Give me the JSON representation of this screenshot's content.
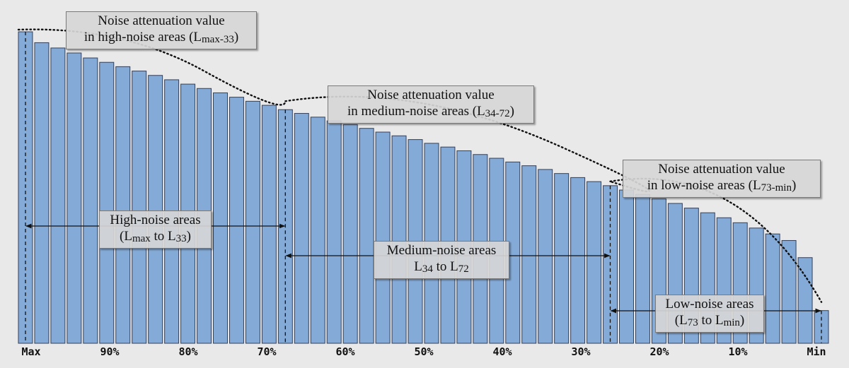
{
  "chart_data": {
    "type": "bar",
    "bar_count": 50,
    "values": [
      100,
      96.5,
      94.8,
      93.2,
      91.6,
      90.2,
      88.8,
      87.4,
      86,
      84.6,
      83.2,
      81.8,
      80.4,
      79,
      77.7,
      76.4,
      75,
      73.8,
      72.6,
      71.4,
      70.2,
      69,
      67.8,
      66.6,
      65.4,
      64.2,
      63,
      61.8,
      60.6,
      59.4,
      58.2,
      57,
      55.8,
      54.5,
      53.2,
      51.9,
      50.6,
      49.2,
      47.8,
      46.4,
      44.9,
      43.4,
      41.9,
      40.3,
      38.7,
      37,
      35.1,
      33,
      27.5,
      10.5
    ],
    "ylim": [
      0,
      100
    ],
    "x_tick_labels": [
      "Max",
      "90%",
      "80%",
      "70%",
      "60%",
      "50%",
      "40%",
      "30%",
      "20%",
      "10%",
      "Min"
    ],
    "colors": {
      "bar_fill": "#84aad7",
      "bar_stroke": "#34405a",
      "background": "#e9e9e9"
    },
    "annotations": {
      "high_value": {
        "line1": "Noise attenuation value",
        "line2_pre": "in high-noise areas (L",
        "line2_sub": "max-33",
        "line2_post": ")"
      },
      "medium_value": {
        "line1": "Noise attenuation value",
        "line2_pre": "in medium-noise areas (L",
        "line2_sub": "34-72",
        "line2_post": ")"
      },
      "low_value": {
        "line1": "Noise attenuation value",
        "line2_pre": "in low-noise areas (L",
        "line2_sub": "73-min",
        "line2_post": ")"
      },
      "high_areas": {
        "line1": "High-noise areas",
        "line2_pre": "(L",
        "line2_sub1": "max",
        "line2_mid": " to L",
        "line2_sub2": "33",
        "line2_post": ")"
      },
      "medium_areas": {
        "line1": "Medium-noise areas",
        "line2_pre": "L",
        "line2_sub1": "34",
        "line2_mid": " to L",
        "line2_sub2": "72",
        "line2_post": ""
      },
      "low_areas": {
        "line1": "Low-noise areas",
        "line2_pre": "(L",
        "line2_sub1": "73",
        "line2_mid": " to L",
        "line2_sub2": "min",
        "line2_post": ")"
      }
    }
  }
}
